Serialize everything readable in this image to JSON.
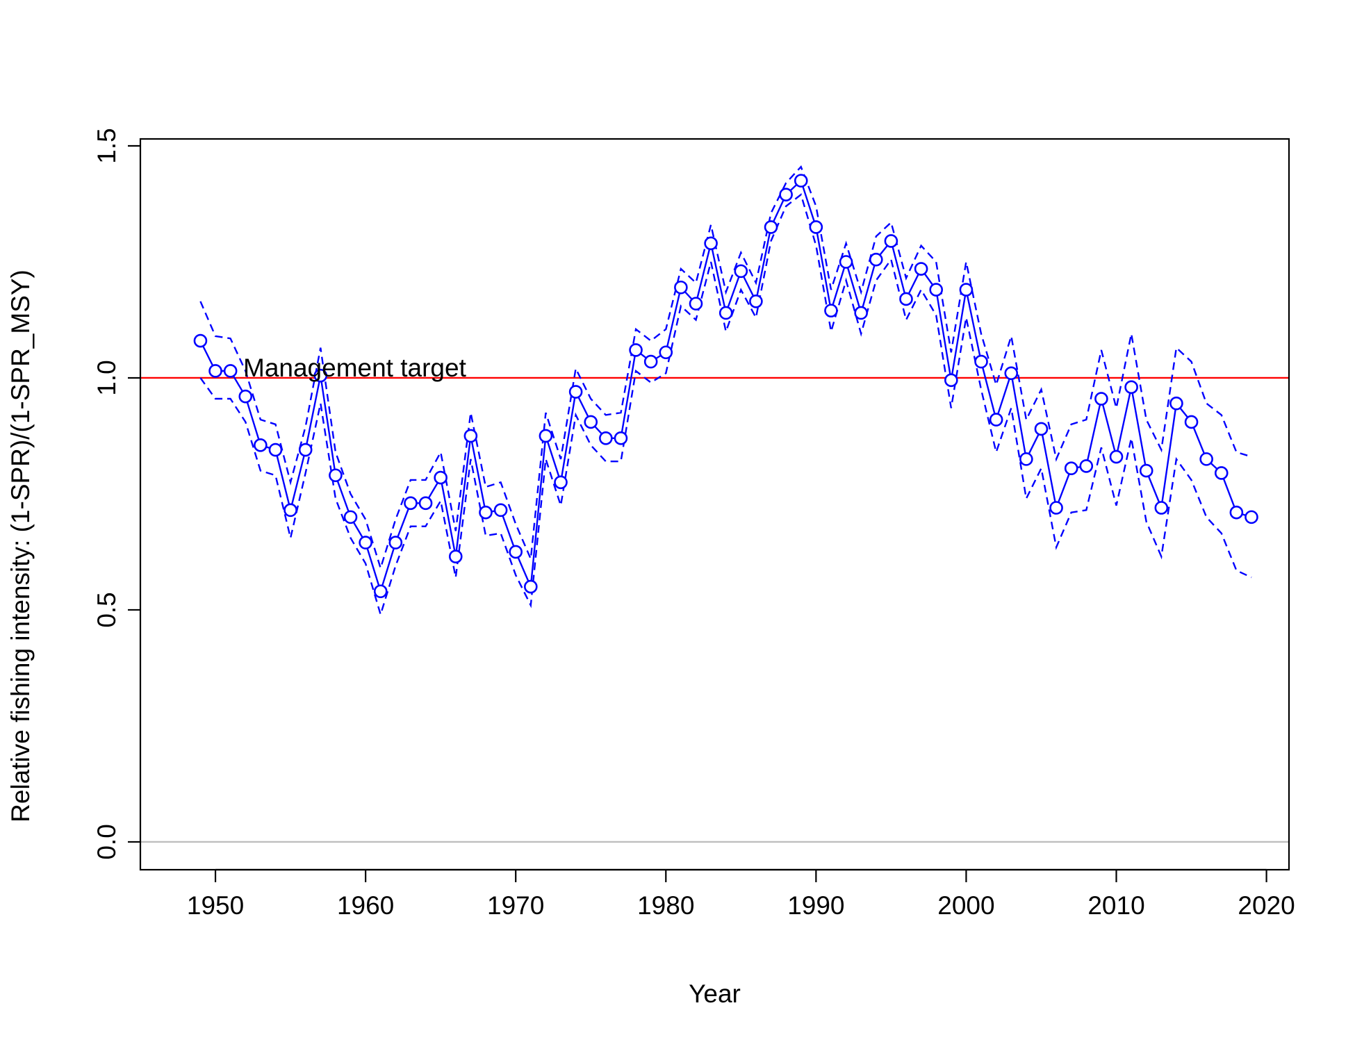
{
  "chart_data": {
    "type": "line",
    "title": "",
    "xlabel": "Year",
    "ylabel": "Relative fishing intensity: (1-SPR)/(1-SPR_MSY)",
    "xlim": [
      1945,
      2021.5
    ],
    "ylim": [
      -0.06,
      1.515
    ],
    "x_ticks": [
      1950,
      1960,
      1970,
      1980,
      1990,
      2000,
      2010,
      2020
    ],
    "y_ticks": [
      0.0,
      0.5,
      1.0,
      1.5
    ],
    "x_tick_labels": [
      "1950",
      "1960",
      "1970",
      "1980",
      "1990",
      "2000",
      "2010",
      "2020"
    ],
    "y_tick_labels": [
      "0.0",
      "0.5",
      "1.0",
      "1.5"
    ],
    "grid": false,
    "legend": "none",
    "reference_lines": [
      {
        "y": 1.0,
        "color": "#ff0000",
        "label": "Management target"
      },
      {
        "y": 0.0,
        "color": "#bebebe",
        "label": ""
      }
    ],
    "annotation": "Management target",
    "colors": {
      "series": "#0000ff",
      "target": "#ff0000",
      "zero": "#bebebe",
      "axis": "#000000"
    },
    "x": [
      1949,
      1950,
      1951,
      1952,
      1953,
      1954,
      1955,
      1956,
      1957,
      1958,
      1959,
      1960,
      1961,
      1962,
      1963,
      1964,
      1965,
      1966,
      1967,
      1968,
      1969,
      1970,
      1971,
      1972,
      1973,
      1974,
      1975,
      1976,
      1977,
      1978,
      1979,
      1980,
      1981,
      1982,
      1983,
      1984,
      1985,
      1986,
      1987,
      1988,
      1989,
      1990,
      1991,
      1992,
      1993,
      1994,
      1995,
      1996,
      1997,
      1998,
      1999,
      2000,
      2001,
      2002,
      2003,
      2004,
      2005,
      2006,
      2007,
      2008,
      2009,
      2010,
      2011,
      2012,
      2013,
      2014,
      2015,
      2016,
      2017,
      2018,
      2019
    ],
    "series": [
      {
        "role": "estimate",
        "values": [
          1.08,
          1.015,
          1.015,
          0.96,
          0.855,
          0.845,
          0.715,
          0.845,
          1.005,
          0.79,
          0.7,
          0.645,
          0.54,
          0.645,
          0.73,
          0.73,
          0.785,
          0.615,
          0.875,
          0.71,
          0.715,
          0.625,
          0.55,
          0.875,
          0.775,
          0.97,
          0.905,
          0.87,
          0.87,
          1.06,
          1.035,
          1.055,
          1.195,
          1.16,
          1.29,
          1.14,
          1.23,
          1.165,
          1.325,
          1.395,
          1.425,
          1.325,
          1.145,
          1.25,
          1.14,
          1.255,
          1.295,
          1.17,
          1.235,
          1.19,
          0.995,
          1.19,
          1.035,
          0.91,
          1.01,
          0.825,
          0.89,
          0.72,
          0.805,
          0.81,
          0.955,
          0.83,
          0.98,
          0.8,
          0.72,
          0.945,
          0.905,
          0.825,
          0.795,
          0.71,
          0.7
        ]
      },
      {
        "role": "upper",
        "values": [
          1.165,
          1.09,
          1.085,
          1.015,
          0.91,
          0.9,
          0.775,
          0.895,
          1.065,
          0.84,
          0.75,
          0.695,
          0.59,
          0.695,
          0.78,
          0.78,
          0.84,
          0.67,
          0.925,
          0.765,
          0.775,
          0.685,
          0.61,
          0.925,
          0.825,
          1.02,
          0.955,
          0.92,
          0.925,
          1.105,
          1.08,
          1.105,
          1.235,
          1.205,
          1.33,
          1.185,
          1.27,
          1.205,
          1.355,
          1.42,
          1.455,
          1.37,
          1.19,
          1.29,
          1.185,
          1.305,
          1.335,
          1.215,
          1.285,
          1.25,
          1.055,
          1.25,
          1.095,
          0.985,
          1.09,
          0.91,
          0.975,
          0.825,
          0.9,
          0.91,
          1.06,
          0.935,
          1.095,
          0.91,
          0.845,
          1.065,
          1.035,
          0.945,
          0.92,
          0.84,
          0.83
        ]
      },
      {
        "role": "lower",
        "values": [
          1.0,
          0.955,
          0.955,
          0.905,
          0.8,
          0.79,
          0.655,
          0.795,
          0.945,
          0.74,
          0.655,
          0.6,
          0.49,
          0.595,
          0.68,
          0.68,
          0.735,
          0.57,
          0.825,
          0.66,
          0.665,
          0.575,
          0.51,
          0.825,
          0.725,
          0.92,
          0.855,
          0.82,
          0.82,
          1.015,
          0.99,
          1.01,
          1.155,
          1.125,
          1.25,
          1.1,
          1.19,
          1.13,
          1.295,
          1.37,
          1.395,
          1.285,
          1.1,
          1.21,
          1.095,
          1.21,
          1.255,
          1.125,
          1.19,
          1.135,
          0.935,
          1.13,
          0.975,
          0.84,
          0.935,
          0.74,
          0.805,
          0.635,
          0.71,
          0.715,
          0.85,
          0.725,
          0.87,
          0.69,
          0.615,
          0.825,
          0.78,
          0.7,
          0.665,
          0.585,
          0.57
        ]
      }
    ]
  }
}
